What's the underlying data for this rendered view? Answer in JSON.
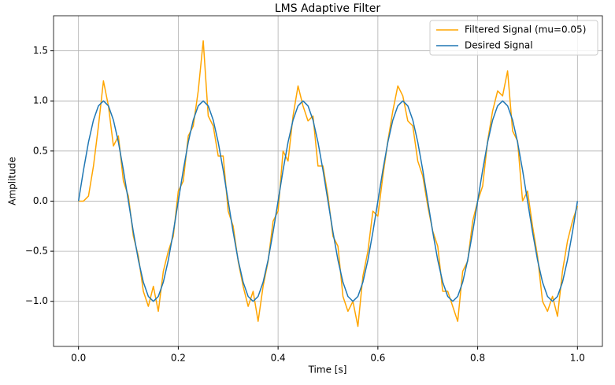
{
  "chart_data": {
    "type": "line",
    "title": "LMS Adaptive Filter",
    "x_label": "Time [s]",
    "y_label": "Amplitude",
    "x": [
      0,
      0.01,
      0.02,
      0.03,
      0.04,
      0.05,
      0.06,
      0.07,
      0.08,
      0.09,
      0.1,
      0.11,
      0.12,
      0.13,
      0.14,
      0.15,
      0.16,
      0.17,
      0.18,
      0.19,
      0.2,
      0.21,
      0.22,
      0.23,
      0.24,
      0.25,
      0.26,
      0.27,
      0.28,
      0.29,
      0.3,
      0.31,
      0.32,
      0.33,
      0.34,
      0.35,
      0.36,
      0.37,
      0.38,
      0.39,
      0.4,
      0.41,
      0.42,
      0.43,
      0.44,
      0.45,
      0.46,
      0.47,
      0.48,
      0.49,
      0.5,
      0.51,
      0.52,
      0.53,
      0.54,
      0.55,
      0.56,
      0.57,
      0.58,
      0.59,
      0.6,
      0.61,
      0.62,
      0.63,
      0.64,
      0.65,
      0.66,
      0.67,
      0.68,
      0.69,
      0.7,
      0.71,
      0.72,
      0.73,
      0.74,
      0.75,
      0.76,
      0.77,
      0.78,
      0.79,
      0.8,
      0.81,
      0.82,
      0.83,
      0.84,
      0.85,
      0.86,
      0.87,
      0.88,
      0.89,
      0.9,
      0.91,
      0.92,
      0.93,
      0.94,
      0.95,
      0.96,
      0.97,
      0.98,
      0.99,
      1
    ],
    "series": [
      {
        "name": "Filtered Signal (mu=0.05)",
        "color": "#ffa500",
        "values": [
          0,
          0,
          0.05,
          0.35,
          0.75,
          1.2,
          0.95,
          0.55,
          0.65,
          0.2,
          0.05,
          -0.35,
          -0.55,
          -0.9,
          -1.05,
          -0.85,
          -1.1,
          -0.7,
          -0.5,
          -0.35,
          0.1,
          0.2,
          0.65,
          0.75,
          1.1,
          1.6,
          0.85,
          0.75,
          0.45,
          0.45,
          -0.1,
          -0.25,
          -0.6,
          -0.85,
          -1.05,
          -0.9,
          -1.2,
          -0.85,
          -0.6,
          -0.2,
          -0.1,
          0.5,
          0.4,
          0.85,
          1.15,
          0.95,
          0.8,
          0.85,
          0.35,
          0.35,
          0.05,
          -0.35,
          -0.45,
          -0.95,
          -1.1,
          -1,
          -1.25,
          -0.75,
          -0.5,
          -0.1,
          -0.15,
          0.25,
          0.6,
          0.9,
          1.15,
          1.05,
          0.8,
          0.75,
          0.4,
          0.25,
          -0.05,
          -0.3,
          -0.45,
          -0.9,
          -0.9,
          -1.05,
          -1.2,
          -0.7,
          -0.6,
          -0.2,
          0,
          0.15,
          0.6,
          0.9,
          1.1,
          1.05,
          1.3,
          0.7,
          0.6,
          0,
          0.1,
          -0.25,
          -0.55,
          -1,
          -1.1,
          -0.95,
          -1.15,
          -0.7,
          -0.4,
          -0.2,
          -0.05
        ]
      },
      {
        "name": "Desired Signal",
        "color": "#1f77b4",
        "values": [
          0,
          0.309,
          0.588,
          0.809,
          0.951,
          1,
          0.951,
          0.809,
          0.588,
          0.309,
          0,
          -0.309,
          -0.588,
          -0.809,
          -0.951,
          -1,
          -0.951,
          -0.809,
          -0.588,
          -0.309,
          0,
          0.309,
          0.588,
          0.809,
          0.951,
          1,
          0.951,
          0.809,
          0.588,
          0.309,
          0,
          -0.309,
          -0.588,
          -0.809,
          -0.951,
          -1,
          -0.951,
          -0.809,
          -0.588,
          -0.309,
          0,
          0.309,
          0.588,
          0.809,
          0.951,
          1,
          0.951,
          0.809,
          0.588,
          0.309,
          0,
          -0.309,
          -0.588,
          -0.809,
          -0.951,
          -1,
          -0.951,
          -0.809,
          -0.588,
          -0.309,
          0,
          0.309,
          0.588,
          0.809,
          0.951,
          1,
          0.951,
          0.809,
          0.588,
          0.309,
          0,
          -0.309,
          -0.588,
          -0.809,
          -0.951,
          -1,
          -0.951,
          -0.809,
          -0.588,
          -0.309,
          0,
          0.309,
          0.588,
          0.809,
          0.951,
          1,
          0.951,
          0.809,
          0.588,
          0.309,
          0,
          -0.309,
          -0.588,
          -0.809,
          -0.951,
          -1,
          -0.951,
          -0.809,
          -0.588,
          -0.309,
          0
        ]
      }
    ],
    "xlim": [
      -0.05,
      1.05
    ],
    "ylim": [
      -1.45,
      1.85
    ],
    "xticks": [
      {
        "value": 0,
        "label": "0.0"
      },
      0.2,
      0.4,
      0.6,
      0.8,
      {
        "value": 1,
        "label": "1.0"
      }
    ],
    "yticks": [
      {
        "value": -1,
        "label": "−1.0"
      },
      -0.5,
      {
        "value": 0,
        "label": "0.0"
      },
      0.5,
      {
        "value": 1,
        "label": "1.0"
      },
      1.5
    ],
    "grid": true,
    "legend": "upper right"
  }
}
